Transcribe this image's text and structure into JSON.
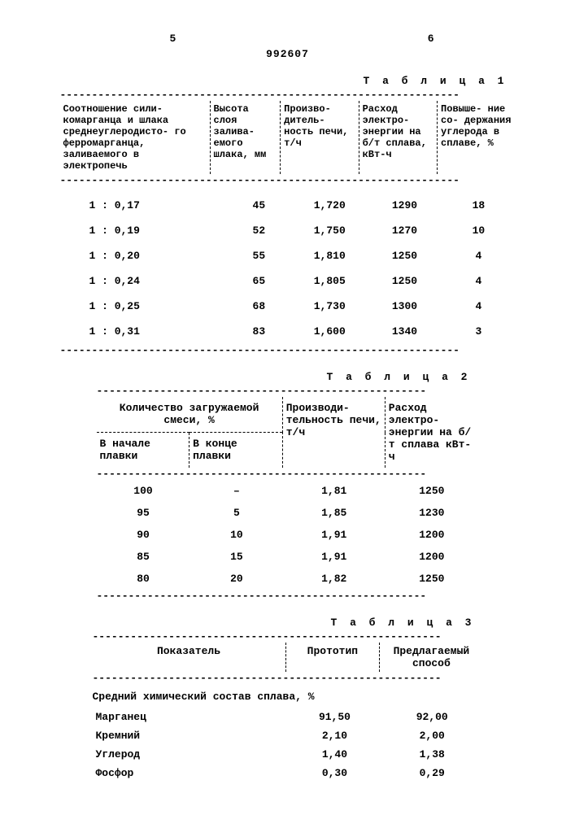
{
  "header": {
    "left_col": "5",
    "right_col": "6",
    "doc_number": "992607"
  },
  "table1": {
    "label": "Т а б л и ц а 1",
    "dash": "---------------------------------------------------------------",
    "headers": {
      "c1": "Соотношение сили-\nкомарганца и шлака\nсреднеуглеродисто-\nго ферромарганца,\nзаливаемого в\nэлектропечь",
      "c2": "Высота\nслоя\nзалива-\nемого\nшлака,\nмм",
      "c3": "Произво-\nдитель-\nность\nпечи,\nт/ч",
      "c4": "Расход\nэлектро-\nэнергии\nна б/т\nсплава,\nкВт-ч",
      "c5": "Повыше-\nние со-\nдержания\nуглерода\nв сплаве,\n%"
    },
    "rows": [
      {
        "ratio": "1 : 0,17",
        "h": "45",
        "p": "1,720",
        "e": "1290",
        "c": "18"
      },
      {
        "ratio": "1 : 0,19",
        "h": "52",
        "p": "1,750",
        "e": "1270",
        "c": "10"
      },
      {
        "ratio": "1 : 0,20",
        "h": "55",
        "p": "1,810",
        "e": "1250",
        "c": "4"
      },
      {
        "ratio": "1 : 0,24",
        "h": "65",
        "p": "1,805",
        "e": "1250",
        "c": "4"
      },
      {
        "ratio": "1 : 0,25",
        "h": "68",
        "p": "1,730",
        "e": "1300",
        "c": "4"
      },
      {
        "ratio": "1 : 0,31",
        "h": "83",
        "p": "1,600",
        "e": "1340",
        "c": "3"
      }
    ]
  },
  "table2": {
    "label": "Т а б л и ц а 2",
    "dash": "----------------------------------------------------",
    "header_top": "Количество загружаемой\nсмеси, %",
    "headers": {
      "c1": "В начале\nплавки",
      "c2": "В конце\nплавки",
      "c3": "Производи-\nтельность\nпечи, т/ч",
      "c4": "Расход\nэлектро-\nэнергии\nна б/т\nсплава\nкВт-ч"
    },
    "rows": [
      {
        "a": "100",
        "b": "–",
        "p": "1,81",
        "e": "1250"
      },
      {
        "a": "95",
        "b": "5",
        "p": "1,85",
        "e": "1230"
      },
      {
        "a": "90",
        "b": "10",
        "p": "1,91",
        "e": "1200"
      },
      {
        "a": "85",
        "b": "15",
        "p": "1,91",
        "e": "1200"
      },
      {
        "a": "80",
        "b": "20",
        "p": "1,82",
        "e": "1250"
      }
    ]
  },
  "table3": {
    "label": "Т а б л и ц а 3",
    "dash": "-------------------------------------------------------",
    "headers": {
      "c1": "Показатель",
      "c2": "Прототип",
      "c3": "Предлагаемый\nспособ"
    },
    "section": "Средний химический состав\nсплава, %",
    "rows": [
      {
        "name": "Марганец",
        "a": "91,50",
        "b": "92,00"
      },
      {
        "name": "Кремний",
        "a": "2,10",
        "b": "2,00"
      },
      {
        "name": "Углерод",
        "a": "1,40",
        "b": "1,38"
      },
      {
        "name": "Фосфор",
        "a": "0,30",
        "b": "0,29"
      }
    ]
  }
}
